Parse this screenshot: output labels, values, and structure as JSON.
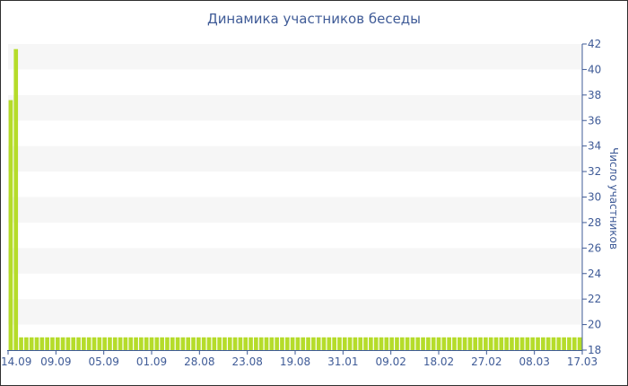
{
  "chart_data": {
    "type": "bar",
    "title": "Динамика участников беседы",
    "xlabel": "",
    "ylabel": "Число участников",
    "ylim": [
      18,
      42
    ],
    "y_ticks": [
      18,
      20,
      22,
      24,
      26,
      28,
      30,
      32,
      34,
      36,
      38,
      40,
      42
    ],
    "x_tick_labels": [
      "14.09",
      "09.09",
      "05.09",
      "01.09",
      "28.08",
      "23.08",
      "19.08",
      "31.01",
      "09.02",
      "18.02",
      "27.02",
      "08.03",
      "17.03"
    ],
    "bar_color": "#b5dc2a",
    "band_color": "#f6f6f6",
    "grid": "horizontal-bands",
    "values": [
      37.6,
      41.6,
      19,
      19,
      19,
      19,
      19,
      19,
      19,
      19,
      19,
      19,
      19,
      19,
      19,
      19,
      19,
      19,
      19,
      19,
      19,
      19,
      19,
      19,
      19,
      19,
      19,
      19,
      19,
      19,
      19,
      19,
      19,
      19,
      19,
      19,
      19,
      19,
      19,
      19,
      19,
      19,
      19,
      19,
      19,
      19,
      19,
      19,
      19,
      19,
      19,
      19,
      19,
      19,
      19,
      19,
      19,
      19,
      19,
      19,
      19,
      19,
      19,
      19,
      19,
      19,
      19,
      19,
      19,
      19,
      19,
      19,
      19,
      19,
      19,
      19,
      19,
      19,
      19,
      19,
      19,
      19,
      19,
      19,
      19,
      19,
      19,
      19,
      19,
      19,
      19,
      19,
      19,
      19,
      19,
      19,
      19,
      19,
      19,
      19,
      19,
      19,
      19,
      19,
      19,
      19,
      19,
      19,
      19,
      19
    ]
  }
}
